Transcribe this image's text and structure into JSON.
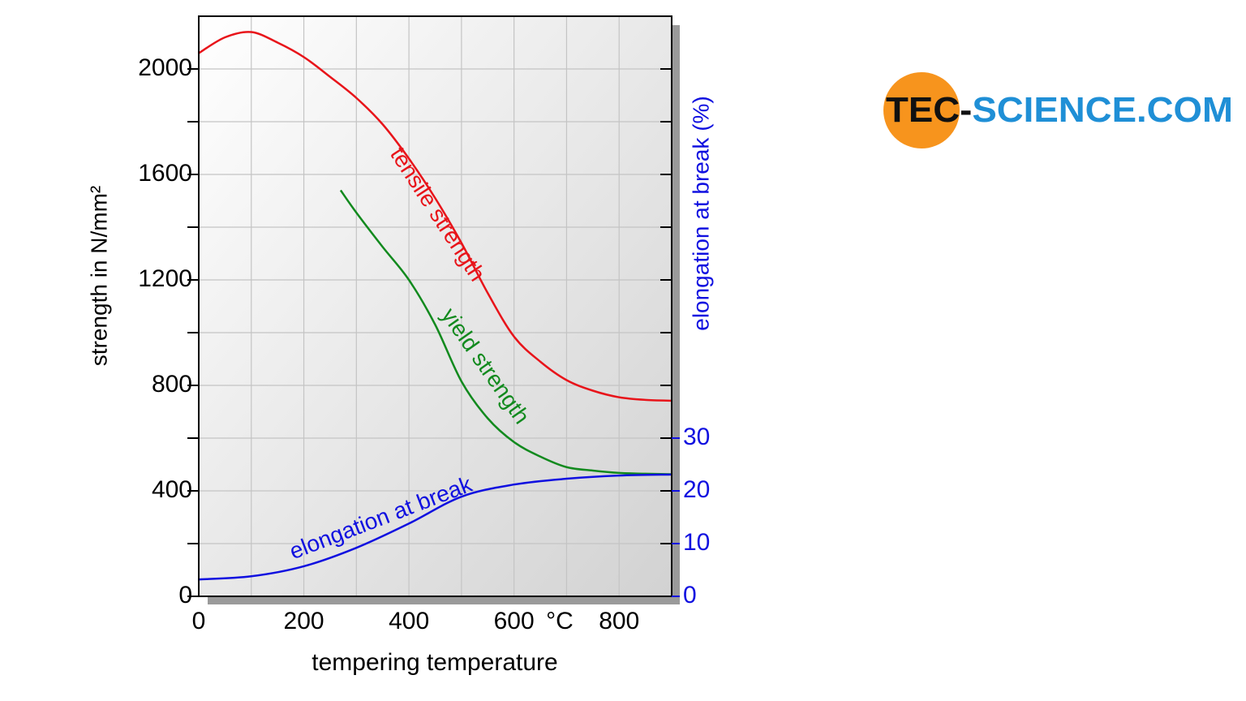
{
  "chart_data": {
    "type": "line",
    "x_label": "tempering temperature",
    "x_unit": "°C",
    "y_label": "strength in N/mm²",
    "y2_label": "elongation at break (%)",
    "xlim": [
      0,
      900
    ],
    "xticks": [
      0,
      200,
      400,
      600,
      800
    ],
    "x_minor_ticks": [
      100,
      300,
      500,
      700
    ],
    "ylim": [
      0,
      2200
    ],
    "yticks": [
      0,
      400,
      800,
      1200,
      1600,
      2000
    ],
    "y_minor_ticks": [
      200,
      600,
      1000,
      1400,
      1800
    ],
    "y2lim": [
      0,
      110
    ],
    "y2ticks": [
      0,
      10,
      20,
      30
    ],
    "grid": true,
    "series": [
      {
        "name": "tensile strength",
        "color": "#e8141a",
        "x": [
          0,
          50,
          100,
          150,
          200,
          250,
          300,
          350,
          400,
          450,
          500,
          550,
          600,
          650,
          700,
          750,
          800,
          850,
          900
        ],
        "values": [
          2060,
          2120,
          2140,
          2100,
          2045,
          1970,
          1890,
          1790,
          1660,
          1510,
          1340,
          1150,
          985,
          890,
          820,
          780,
          755,
          745,
          742
        ]
      },
      {
        "name": "yield strength",
        "color": "#128a1e",
        "x": [
          270,
          300,
          350,
          400,
          450,
          500,
          550,
          600,
          650,
          700,
          750,
          800,
          850,
          900
        ],
        "values": [
          1540,
          1455,
          1325,
          1200,
          1030,
          815,
          675,
          585,
          530,
          490,
          477,
          468,
          465,
          463
        ]
      },
      {
        "name": "elongation at break",
        "color": "#1010e0",
        "axis": "y2",
        "x": [
          0,
          100,
          200,
          300,
          400,
          500,
          600,
          700,
          800,
          900
        ],
        "values": [
          3.2,
          3.8,
          5.7,
          9.2,
          13.8,
          18.9,
          21.2,
          22.3,
          22.9,
          23.1
        ]
      }
    ]
  },
  "logo": {
    "dark": "TEC-",
    "blue": "SCIENCE.COM"
  }
}
